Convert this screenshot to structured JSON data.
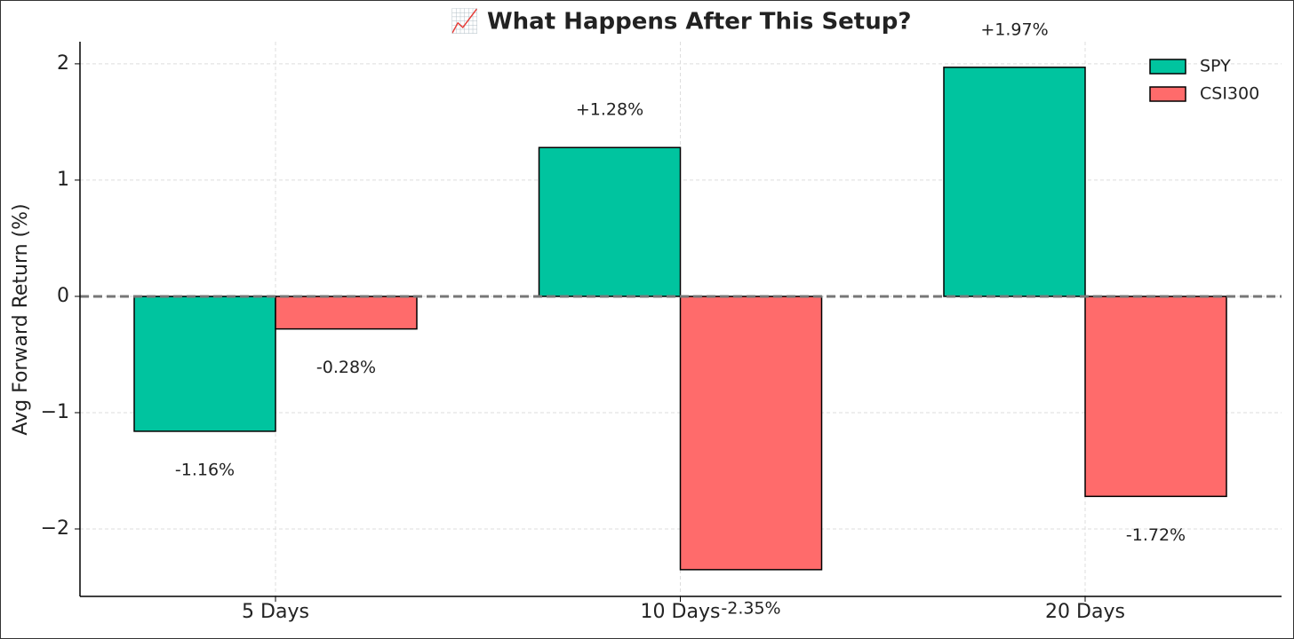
{
  "chart_data": {
    "type": "bar",
    "title": "📈 What Happens After This Setup?",
    "y_label": "Avg Forward Return (%)",
    "categories": [
      "5 Days",
      "10 Days",
      "20 Days"
    ],
    "series": [
      {
        "name": "SPY",
        "color": "#00c49f",
        "values": [
          -1.16,
          1.28,
          1.97
        ],
        "value_labels": [
          "-1.16%",
          "+1.28%",
          "+1.97%"
        ]
      },
      {
        "name": "CSI300",
        "color": "#ff6b6b",
        "values": [
          -0.28,
          -2.35,
          -1.72
        ],
        "value_labels": [
          "-0.28%",
          "-2.35%",
          "-1.72%"
        ]
      }
    ],
    "ylim": [
      -2.58,
      2.19
    ],
    "yticks": [
      {
        "value": -2,
        "label": "−2"
      },
      {
        "value": -1,
        "label": "−1"
      },
      0,
      1,
      2
    ],
    "grid": true,
    "zero_line": true,
    "legend": "upper right"
  }
}
